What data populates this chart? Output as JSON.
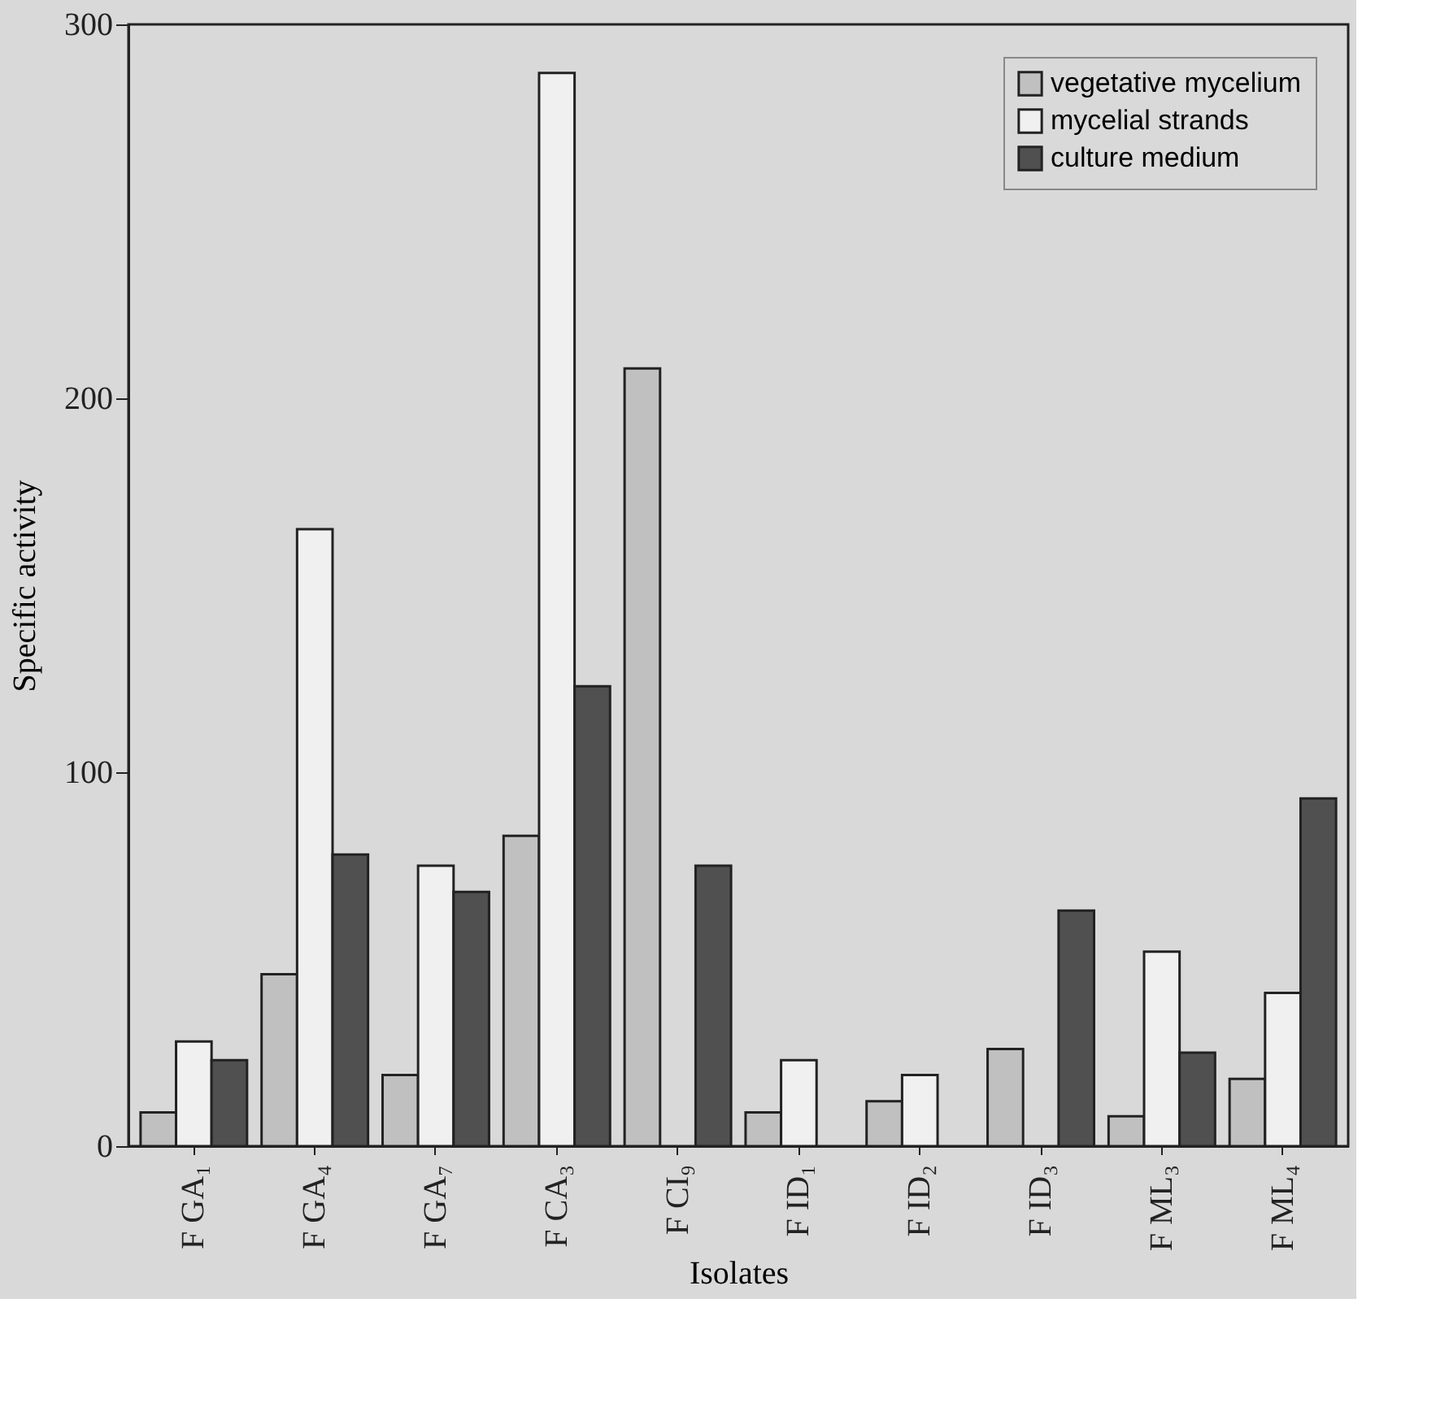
{
  "chart_data": {
    "type": "bar",
    "xlabel": "Isolates",
    "ylabel": "Specific activity",
    "categories": [
      "F GA₁",
      "F GA₄",
      "F GA₇",
      "F CA₃",
      "F CI₉",
      "F ID₁",
      "F ID₂",
      "F ID₃",
      "F ML₃",
      "F ML₄"
    ],
    "series": [
      {
        "name": "vegetative mycelium",
        "color": "#c0c0c0",
        "values": [
          9,
          46,
          19,
          83,
          208,
          9,
          12,
          26,
          8,
          18
        ]
      },
      {
        "name": "mycelial strands",
        "color": "#f0f0f0",
        "values": [
          28,
          165,
          75,
          287,
          null,
          23,
          19,
          null,
          52,
          41
        ]
      },
      {
        "name": "culture medium",
        "color": "#505050",
        "values": [
          23,
          78,
          68,
          123,
          75,
          null,
          null,
          63,
          25,
          93
        ]
      }
    ],
    "ylim": [
      0,
      300
    ],
    "yticks": [
      0,
      100,
      200,
      300
    ],
    "grid": false,
    "legend": "top right"
  }
}
